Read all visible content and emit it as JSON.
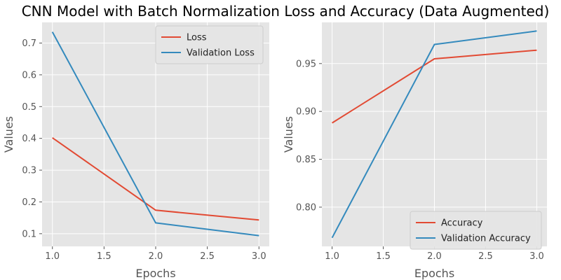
{
  "figure": {
    "title": "CNN Model with Batch Normalization Loss and Accuracy (Data Augmented)"
  },
  "chart_data": [
    {
      "type": "line",
      "xlabel": "Epochs",
      "ylabel": "Values",
      "x": [
        1.0,
        2.0,
        3.0
      ],
      "xlim": [
        0.9,
        3.1
      ],
      "ylim": [
        0.06,
        0.765
      ],
      "xticks": [
        1.0,
        1.5,
        2.0,
        2.5,
        3.0
      ],
      "xtick_labels": [
        "1.0",
        "1.5",
        "2.0",
        "2.5",
        "3.0"
      ],
      "yticks": [
        0.1,
        0.2,
        0.3,
        0.4,
        0.5,
        0.6,
        0.7
      ],
      "ytick_labels": [
        "0.1",
        "0.2",
        "0.3",
        "0.4",
        "0.5",
        "0.6",
        "0.7"
      ],
      "grid": true,
      "legend_position": "top-right",
      "series": [
        {
          "name": "Loss",
          "color": "#E24A33",
          "values": [
            0.402,
            0.174,
            0.143
          ]
        },
        {
          "name": "Validation Loss",
          "color": "#348ABD",
          "values": [
            0.735,
            0.134,
            0.094
          ]
        }
      ]
    },
    {
      "type": "line",
      "xlabel": "Epochs",
      "ylabel": "Values",
      "x": [
        1.0,
        2.0,
        3.0
      ],
      "xlim": [
        0.9,
        3.1
      ],
      "ylim": [
        0.759,
        0.993
      ],
      "xticks": [
        1.0,
        1.5,
        2.0,
        2.5,
        3.0
      ],
      "xtick_labels": [
        "1.0",
        "1.5",
        "2.0",
        "2.5",
        "3.0"
      ],
      "yticks": [
        0.8,
        0.85,
        0.9,
        0.95
      ],
      "ytick_labels": [
        "0.80",
        "0.85",
        "0.90",
        "0.95"
      ],
      "grid": true,
      "legend_position": "bottom-right",
      "series": [
        {
          "name": "Accuracy",
          "color": "#E24A33",
          "values": [
            0.888,
            0.955,
            0.964
          ]
        },
        {
          "name": "Validation Accuracy",
          "color": "#348ABD",
          "values": [
            0.768,
            0.97,
            0.984
          ]
        }
      ]
    }
  ]
}
